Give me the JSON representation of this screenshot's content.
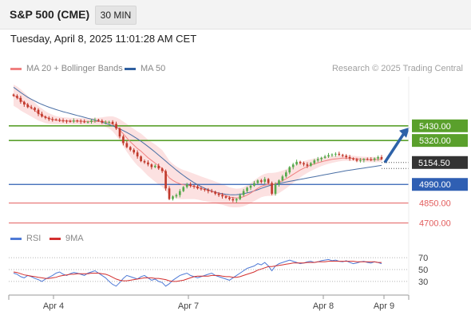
{
  "header": {
    "instrument": "S&P 500 (CME)",
    "timeframe": "30 MIN"
  },
  "datetime": "Tuesday, April 8, 2025 11:01:28 AM CET",
  "legend": {
    "ma20_label": "MA 20 + Bollinger Bands",
    "ma50_label": "MA 50",
    "credit": "Research © 2025 Trading Central",
    "rsi_label": "RSI",
    "ma9_label": "9MA"
  },
  "colors": {
    "price_up": "#56a84b",
    "price_down": "#c0392b",
    "ma20": "#f08080",
    "bollinger_fill": "#fbdcdc",
    "ma50": "#4a6fa5",
    "resistance": "#5aa02c",
    "pivot": "#2f5fb3",
    "support": "#e25c5c",
    "current_price_badge": "#333333",
    "rsi": "#4f7ad6",
    "rsi_ma9": "#d32f2f",
    "forecast_arrow": "#2d62a8"
  },
  "chart_data": [
    {
      "type": "candlestick",
      "title": "S&P 500 (CME) 30 MIN",
      "x_labels": [
        "Apr 4",
        "Apr 7",
        "Apr 8",
        "Apr 9"
      ],
      "ylim": [
        4650,
        5800
      ],
      "current_price": 5154.5,
      "levels": [
        {
          "label": "5430.00",
          "value": 5430,
          "kind": "resistance"
        },
        {
          "label": "5320.00",
          "value": 5320,
          "kind": "resistance"
        },
        {
          "label": "4990.00",
          "value": 4990,
          "kind": "pivot"
        },
        {
          "label": "4850.00",
          "value": 4850,
          "kind": "support"
        },
        {
          "label": "4700.00",
          "value": 4700,
          "kind": "support"
        }
      ],
      "current_price_label": "5154.50",
      "close_series": [
        5655,
        5640,
        5610,
        5590,
        5570,
        5565,
        5550,
        5520,
        5500,
        5490,
        5480,
        5478,
        5475,
        5470,
        5468,
        5465,
        5462,
        5470,
        5468,
        5462,
        5458,
        5460,
        5470,
        5475,
        5468,
        5455,
        5455,
        5460,
        5445,
        5410,
        5350,
        5300,
        5270,
        5250,
        5230,
        5200,
        5165,
        5155,
        5140,
        5120,
        5130,
        5110,
        5090,
        4960,
        4880,
        4900,
        4910,
        4940,
        4970,
        4990,
        4980,
        4975,
        4960,
        4955,
        4950,
        4940,
        4935,
        4920,
        4910,
        4900,
        4890,
        4880,
        4870,
        4880,
        4910,
        4940,
        4965,
        4980,
        5000,
        5020,
        5010,
        5030,
        5000,
        4920,
        4990,
        5020,
        5050,
        5080,
        5120,
        5140,
        5160,
        5150,
        5140,
        5130,
        5150,
        5170,
        5180,
        5190,
        5200,
        5210,
        5215,
        5220,
        5212,
        5205,
        5195,
        5185,
        5178,
        5168,
        5172,
        5180,
        5178,
        5175,
        5185,
        5195,
        5180
      ],
      "ma20_series": [
        5660,
        5645,
        5625,
        5605,
        5585,
        5565,
        5545,
        5525,
        5510,
        5495,
        5485,
        5478,
        5473,
        5470,
        5468,
        5467,
        5466,
        5465,
        5465,
        5464,
        5463,
        5462,
        5462,
        5463,
        5463,
        5462,
        5460,
        5455,
        5445,
        5425,
        5400,
        5370,
        5340,
        5310,
        5285,
        5260,
        5240,
        5215,
        5190,
        5170,
        5150,
        5130,
        5110,
        5075,
        5040,
        5020,
        5005,
        4995,
        4988,
        4985,
        4980,
        4975,
        4968,
        4960,
        4952,
        4945,
        4938,
        4930,
        4922,
        4915,
        4905,
        4895,
        4890,
        4888,
        4890,
        4898,
        4910,
        4925,
        4942,
        4960,
        4975,
        4985,
        4990,
        4990,
        4995,
        5005,
        5018,
        5032,
        5048,
        5065,
        5082,
        5098,
        5112,
        5124,
        5135,
        5144,
        5152,
        5160,
        5167,
        5173,
        5178,
        5182,
        5185,
        5187,
        5188,
        5187,
        5185,
        5182,
        5180,
        5178,
        5177,
        5176,
        5176,
        5177,
        5178
      ],
      "ma50_series": [
        5720,
        5700,
        5680,
        5662,
        5645,
        5630,
        5616,
        5603,
        5591,
        5580,
        5570,
        5561,
        5552,
        5544,
        5536,
        5529,
        5522,
        5515,
        5508,
        5501,
        5494,
        5487,
        5480,
        5473,
        5465,
        5457,
        5449,
        5440,
        5430,
        5419,
        5407,
        5394,
        5380,
        5365,
        5349,
        5332,
        5314,
        5295,
        5275,
        5254,
        5232,
        5210,
        5188,
        5165,
        5142,
        5120,
        5098,
        5077,
        5057,
        5038,
        5020,
        5003,
        4988,
        4974,
        4961,
        4950,
        4940,
        4932,
        4925,
        4920,
        4916,
        4913,
        4912,
        4913,
        4916,
        4920,
        4926,
        4933,
        4941,
        4950,
        4960,
        4970,
        4979,
        4986,
        4992,
        4998,
        5003,
        5008,
        5013,
        5018,
        5023,
        5028,
        5033,
        5038,
        5043,
        5048,
        5053,
        5058,
        5063,
        5068,
        5073,
        5078,
        5083,
        5088,
        5093,
        5097,
        5101,
        5105,
        5109,
        5113,
        5117,
        5121,
        5125,
        5129,
        5133
      ],
      "bollinger_width": [
        80,
        80,
        80,
        75,
        70,
        65,
        60,
        55,
        50,
        45,
        40,
        35,
        30,
        28,
        26,
        25,
        24,
        24,
        24,
        24,
        24,
        24,
        25,
        26,
        28,
        32,
        38,
        46,
        56,
        68,
        80,
        92,
        104,
        114,
        122,
        128,
        132,
        134,
        136,
        138,
        140,
        140,
        138,
        135,
        130,
        125,
        120,
        115,
        110,
        105,
        100,
        95,
        92,
        90,
        88,
        86,
        84,
        82,
        80,
        78,
        76,
        74,
        72,
        70,
        70,
        72,
        74,
        76,
        78,
        80,
        82,
        84,
        86,
        86,
        84,
        80,
        76,
        72,
        68,
        64,
        60,
        56,
        52,
        48,
        44,
        40,
        36,
        32,
        30,
        28,
        26,
        24,
        22,
        20,
        20,
        20,
        20,
        20,
        20,
        20,
        20,
        20,
        20,
        20,
        20
      ]
    },
    {
      "type": "line",
      "title": "RSI",
      "ylim": [
        15,
        85
      ],
      "y_ticks": [
        70,
        50,
        30
      ],
      "series": [
        {
          "name": "RSI",
          "values": [
            44,
            42,
            38,
            36,
            40,
            38,
            35,
            33,
            30,
            34,
            37,
            40,
            44,
            46,
            42,
            40,
            43,
            45,
            44,
            42,
            40,
            44,
            46,
            48,
            44,
            40,
            36,
            30,
            25,
            22,
            28,
            35,
            40,
            38,
            36,
            34,
            38,
            40,
            36,
            32,
            34,
            30,
            28,
            22,
            26,
            32,
            36,
            40,
            42,
            44,
            40,
            38,
            36,
            38,
            40,
            42,
            44,
            40,
            38,
            36,
            34,
            32,
            36,
            40,
            44,
            48,
            52,
            54,
            56,
            60,
            58,
            62,
            56,
            48,
            56,
            60,
            62,
            64,
            66,
            64,
            62,
            60,
            61,
            63,
            64,
            62,
            63,
            65,
            66,
            67,
            65,
            66,
            64,
            63,
            65,
            62,
            60,
            61,
            63,
            64,
            62,
            61,
            63,
            62,
            60
          ]
        },
        {
          "name": "9MA",
          "values": [
            46,
            45,
            43,
            41,
            40,
            39,
            38,
            37,
            36,
            35,
            35,
            36,
            37,
            39,
            40,
            41,
            42,
            42,
            43,
            43,
            43,
            43,
            44,
            44,
            44,
            43,
            42,
            40,
            37,
            34,
            32,
            31,
            31,
            32,
            33,
            34,
            35,
            36,
            36,
            36,
            35,
            35,
            34,
            33,
            31,
            30,
            30,
            31,
            32,
            34,
            36,
            38,
            39,
            39,
            39,
            39,
            40,
            40,
            40,
            39,
            38,
            38,
            37,
            37,
            38,
            40,
            42,
            44,
            46,
            49,
            51,
            53,
            55,
            55,
            56,
            57,
            58,
            59,
            60,
            61,
            61,
            61,
            61,
            62,
            62,
            62,
            63,
            63,
            63,
            64,
            64,
            64,
            64,
            64,
            64,
            64,
            64,
            63,
            63,
            63,
            63,
            63,
            63,
            62,
            62
          ]
        }
      ],
      "y_tick_labels": [
        "70",
        "50",
        "30"
      ]
    }
  ]
}
